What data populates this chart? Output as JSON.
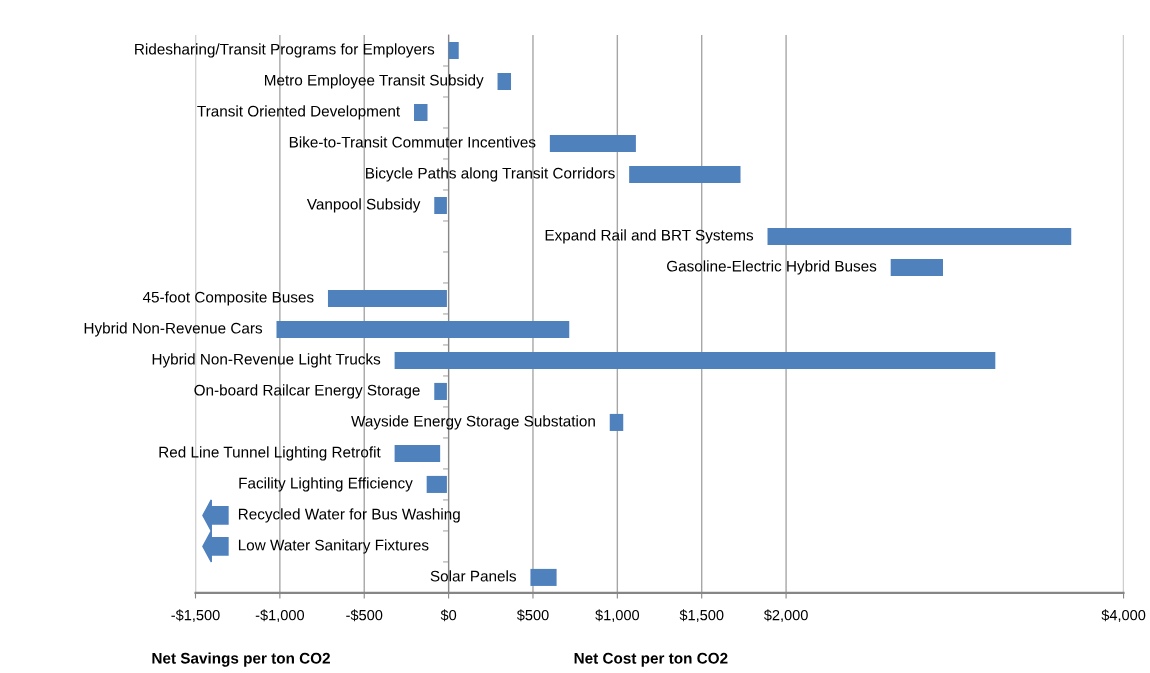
{
  "chart_data": {
    "type": "bar",
    "orientation": "horizontal",
    "categories": [
      "Ridesharing/Transit Programs for Employers",
      "Metro Employee Transit Subsidy",
      "Transit Oriented Development",
      "Bike-to-Transit Commuter Incentives",
      "Bicycle Paths along Transit Corridors",
      "Vanpool Subsidy",
      "Expand Rail and BRT Systems",
      "Gasoline-Electric Hybrid Buses",
      "45-foot Composite Buses",
      "Hybrid Non-Revenue Cars",
      "Hybrid Non-Revenue Light Trucks",
      "On-board Railcar Energy Storage",
      "Wayside Energy Storage Substation",
      "Red Line Tunnel Lighting Retrofit",
      "Facility Lighting Efficiency",
      "Recycled Water for Bus Washing",
      "Low Water Sanitary Fixtures",
      "Solar Panels"
    ],
    "base": [
      0,
      290,
      -205,
      600,
      1070,
      -85,
      1890,
      2620,
      -715,
      -1020,
      -320,
      -85,
      955,
      -320,
      -130,
      null,
      null,
      485
    ],
    "values": [
      60,
      80,
      80,
      510,
      660,
      75,
      1800,
      310,
      705,
      1735,
      3560,
      75,
      80,
      270,
      120,
      null,
      null,
      155
    ],
    "color": "#4f81bd",
    "xlim": [
      -1500,
      4000
    ],
    "xticks": [
      {
        "value": -1500,
        "label": "-$1,500"
      },
      {
        "value": -1000,
        "label": "-$1,000"
      },
      {
        "value": -500,
        "label": "-$500"
      },
      {
        "value": 0,
        "label": "$0"
      },
      {
        "value": 500,
        "label": "$500"
      },
      {
        "value": 1000,
        "label": "$1,000"
      },
      {
        "value": 1500,
        "label": "$1,500"
      },
      {
        "value": 2000,
        "label": "$2,000"
      },
      {
        "value": 4000,
        "label": "$4,000"
      }
    ],
    "grid": "x",
    "annotations": [
      "Net Savings per ton CO2",
      "Net Cost per ton CO2"
    ]
  }
}
